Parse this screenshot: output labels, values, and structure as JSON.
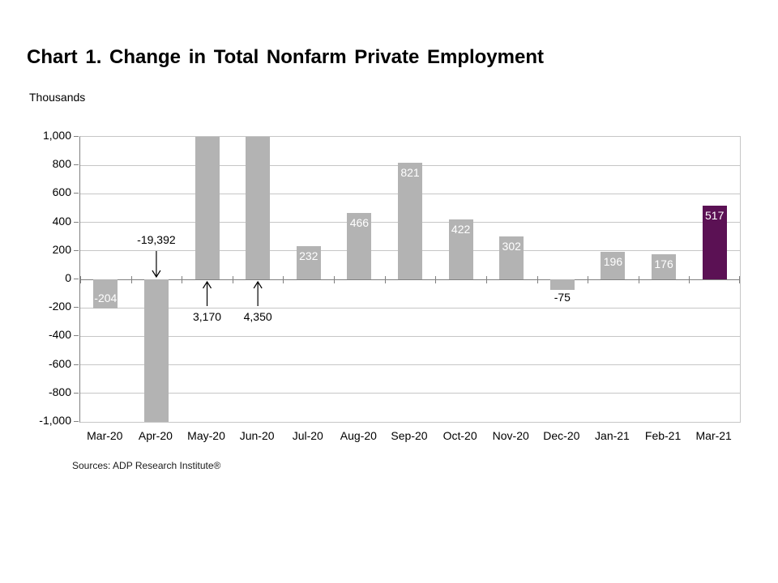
{
  "page": {
    "title": "Chart 1. Change in Total Nonfarm Private Employment",
    "units_label": "Thousands",
    "source": "Sources: ADP Research Institute®"
  },
  "colors": {
    "bar": "#b3b3b3",
    "bar_highlight": "#5b1154",
    "gridline": "#c6c6c6",
    "axis": "#808080",
    "value_label_inside": "#ffffff",
    "value_label_outside": "#000000",
    "annotation": "#000000"
  },
  "chart_data": {
    "type": "bar",
    "title": "Chart 1. Change in Total Nonfarm Private Employment",
    "ylabel": "Thousands",
    "xlabel": "",
    "ylim": [
      -1000,
      1000
    ],
    "ytick_step": 200,
    "ytick_labels": [
      "1,000",
      "800",
      "600",
      "400",
      "200",
      "0",
      "-200",
      "-400",
      "-600",
      "-800",
      "-1,000"
    ],
    "grid": true,
    "legend": false,
    "categories": [
      "Mar-20",
      "Apr-20",
      "May-20",
      "Jun-20",
      "Jul-20",
      "Aug-20",
      "Sep-20",
      "Oct-20",
      "Nov-20",
      "Dec-20",
      "Jan-21",
      "Feb-21",
      "Mar-21"
    ],
    "values": [
      -204,
      -19392,
      3170,
      4350,
      232,
      466,
      821,
      422,
      302,
      -75,
      196,
      176,
      517
    ],
    "bars": [
      {
        "category": "Mar-20",
        "value": -204,
        "label": "-204",
        "label_pos": "inside-bottom",
        "clipped": false,
        "highlight": false
      },
      {
        "category": "Apr-20",
        "value": -19392,
        "label": "",
        "label_pos": "none",
        "clipped": true,
        "highlight": false,
        "annotation": {
          "text": "-19,392",
          "direction": "down"
        }
      },
      {
        "category": "May-20",
        "value": 3170,
        "label": "",
        "label_pos": "none",
        "clipped": true,
        "highlight": false,
        "annotation": {
          "text": "3,170",
          "direction": "up"
        }
      },
      {
        "category": "Jun-20",
        "value": 4350,
        "label": "",
        "label_pos": "none",
        "clipped": true,
        "highlight": false,
        "annotation": {
          "text": "4,350",
          "direction": "up"
        }
      },
      {
        "category": "Jul-20",
        "value": 232,
        "label": "232",
        "label_pos": "inside-top",
        "clipped": false,
        "highlight": false
      },
      {
        "category": "Aug-20",
        "value": 466,
        "label": "466",
        "label_pos": "inside-top",
        "clipped": false,
        "highlight": false
      },
      {
        "category": "Sep-20",
        "value": 821,
        "label": "821",
        "label_pos": "inside-top",
        "clipped": false,
        "highlight": false
      },
      {
        "category": "Oct-20",
        "value": 422,
        "label": "422",
        "label_pos": "inside-top",
        "clipped": false,
        "highlight": false
      },
      {
        "category": "Nov-20",
        "value": 302,
        "label": "302",
        "label_pos": "inside-top",
        "clipped": false,
        "highlight": false
      },
      {
        "category": "Dec-20",
        "value": -75,
        "label": "-75",
        "label_pos": "below",
        "clipped": false,
        "highlight": false
      },
      {
        "category": "Jan-21",
        "value": 196,
        "label": "196",
        "label_pos": "inside-top",
        "clipped": false,
        "highlight": false
      },
      {
        "category": "Feb-21",
        "value": 176,
        "label": "176",
        "label_pos": "inside-top",
        "clipped": false,
        "highlight": false
      },
      {
        "category": "Mar-21",
        "value": 517,
        "label": "517",
        "label_pos": "inside-top",
        "clipped": false,
        "highlight": true
      }
    ]
  }
}
